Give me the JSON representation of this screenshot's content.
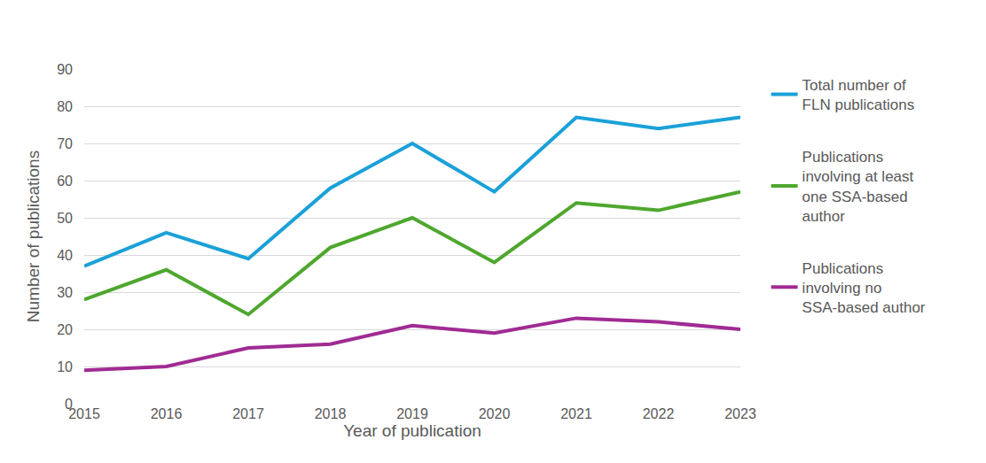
{
  "chart_data": {
    "type": "line",
    "x_label": "Year of publication",
    "y_label": "Number of publications",
    "categories": [
      "2015",
      "2016",
      "2017",
      "2018",
      "2019",
      "2020",
      "2021",
      "2022",
      "2023"
    ],
    "series": [
      {
        "name": "Total number of FLN publications",
        "color": "#1ba1d8",
        "values": [
          37,
          46,
          39,
          58,
          70,
          57,
          77,
          74,
          77
        ]
      },
      {
        "name": "Publications involving at least one SSA-based author",
        "color": "#4ea72e",
        "values": [
          28,
          36,
          24,
          42,
          50,
          38,
          54,
          52,
          57
        ]
      },
      {
        "name": "Publications involving no SSA-based author",
        "color": "#a02b93",
        "values": [
          9,
          10,
          15,
          16,
          21,
          19,
          23,
          22,
          20
        ]
      }
    ],
    "ylim": [
      0,
      90
    ],
    "yticks": [
      0,
      10,
      20,
      30,
      40,
      50,
      60,
      70,
      80,
      90
    ],
    "grid": true,
    "legend": "right"
  }
}
